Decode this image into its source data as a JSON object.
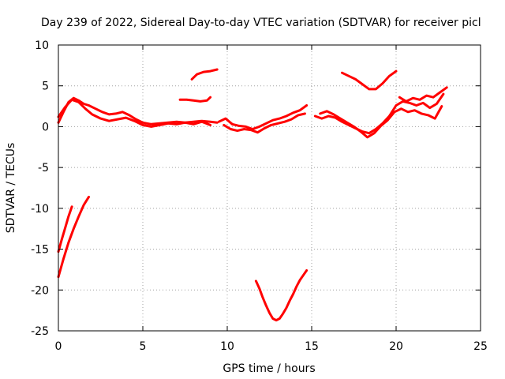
{
  "chart_data": {
    "type": "scatter",
    "title": "Day 239 of 2022, Sidereal Day-to-day VTEC variation (SDTVAR) for receiver picl",
    "xlabel": "GPS time / hours",
    "ylabel": "SDTVAR / TECUs",
    "xlim": [
      0,
      25
    ],
    "ylim": [
      -25,
      10
    ],
    "xticks": [
      "0",
      "5",
      "10",
      "15",
      "20",
      "25"
    ],
    "yticks": [
      "10",
      "5",
      "0",
      "-5",
      "-10",
      "-15",
      "-20",
      "-25"
    ],
    "grid": true,
    "color": "#ff0000",
    "segments": [
      {
        "x": [
          0.0,
          0.3,
          0.6,
          0.9,
          1.2,
          1.5,
          1.8,
          2.2,
          2.6,
          3.0,
          3.4,
          3.8,
          4.2,
          4.6,
          5.0,
          5.5,
          6.0,
          6.5,
          7.0,
          7.5,
          8.0,
          8.5,
          9.0,
          9.4
        ],
        "y": [
          0.5,
          1.8,
          3.0,
          3.5,
          3.2,
          2.8,
          2.6,
          2.2,
          1.8,
          1.5,
          1.6,
          1.8,
          1.4,
          0.9,
          0.5,
          0.3,
          0.4,
          0.5,
          0.6,
          0.5,
          0.6,
          0.7,
          0.6,
          0.5
        ]
      },
      {
        "x": [
          0.0,
          0.4,
          0.8,
          1.2,
          1.6,
          2.0,
          2.5,
          3.0,
          3.5,
          4.0,
          4.5,
          5.0,
          5.5,
          6.0,
          6.5,
          7.0,
          7.5,
          8.0,
          8.5,
          9.0
        ],
        "y": [
          1.2,
          2.4,
          3.3,
          3.0,
          2.2,
          1.5,
          1.0,
          0.7,
          0.9,
          1.1,
          0.7,
          0.2,
          0.0,
          0.2,
          0.4,
          0.3,
          0.5,
          0.3,
          0.6,
          0.2
        ]
      },
      {
        "x": [
          0.0,
          0.2,
          0.4,
          0.6,
          0.8
        ],
        "y": [
          -15.3,
          -13.8,
          -12.4,
          -11.0,
          -9.8
        ]
      },
      {
        "x": [
          0.0,
          0.3,
          0.6,
          0.9,
          1.2,
          1.5,
          1.8
        ],
        "y": [
          -18.4,
          -16.2,
          -14.2,
          -12.5,
          -11.0,
          -9.6,
          -8.6
        ]
      },
      {
        "x": [
          7.9,
          8.2,
          8.6,
          9.0,
          9.4
        ],
        "y": [
          5.8,
          6.4,
          6.7,
          6.8,
          7.0
        ]
      },
      {
        "x": [
          7.2,
          7.6,
          8.0,
          8.4,
          8.8,
          9.0
        ],
        "y": [
          3.3,
          3.3,
          3.2,
          3.1,
          3.2,
          3.6
        ]
      },
      {
        "x": [
          9.5,
          9.9,
          10.3,
          10.7,
          11.1,
          11.5,
          11.9,
          12.3,
          12.7,
          13.1,
          13.5,
          13.9,
          14.3,
          14.7
        ],
        "y": [
          0.6,
          1.0,
          0.3,
          0.1,
          0.0,
          -0.3,
          0.0,
          0.4,
          0.8,
          1.0,
          1.3,
          1.7,
          2.0,
          2.6
        ]
      },
      {
        "x": [
          9.8,
          10.2,
          10.6,
          11.0,
          11.4,
          11.8,
          12.2,
          12.6,
          13.0,
          13.4,
          13.8,
          14.2,
          14.6
        ],
        "y": [
          0.2,
          -0.3,
          -0.5,
          -0.3,
          -0.4,
          -0.7,
          -0.2,
          0.2,
          0.4,
          0.6,
          0.9,
          1.4,
          1.6
        ]
      },
      {
        "x": [
          11.7,
          11.9,
          12.1,
          12.3,
          12.5,
          12.7,
          12.9,
          13.1,
          13.3,
          13.5,
          13.7,
          13.9,
          14.1,
          14.3,
          14.5,
          14.7
        ],
        "y": [
          -18.9,
          -19.8,
          -20.9,
          -21.9,
          -22.8,
          -23.5,
          -23.7,
          -23.5,
          -22.9,
          -22.2,
          -21.3,
          -20.5,
          -19.6,
          -18.8,
          -18.2,
          -17.6
        ]
      },
      {
        "x": [
          15.2,
          15.6,
          16.0,
          16.4,
          16.8,
          17.2,
          17.6,
          18.0,
          18.4,
          18.8,
          19.2,
          19.6,
          20.0,
          20.4,
          20.8,
          21.2,
          21.6,
          22.0,
          22.4,
          22.8
        ],
        "y": [
          1.3,
          1.0,
          1.3,
          1.1,
          0.6,
          0.2,
          -0.2,
          -0.6,
          -0.8,
          -0.3,
          0.4,
          1.3,
          2.6,
          3.1,
          2.9,
          2.6,
          2.9,
          2.3,
          2.8,
          4.0
        ]
      },
      {
        "x": [
          15.5,
          15.9,
          16.3,
          16.7,
          17.1,
          17.5,
          17.9,
          18.3,
          18.7,
          19.1,
          19.5,
          19.9,
          20.3,
          20.7,
          21.1,
          21.5,
          21.9,
          22.3,
          22.7
        ],
        "y": [
          1.6,
          1.9,
          1.5,
          1.0,
          0.5,
          0.0,
          -0.6,
          -1.3,
          -0.8,
          0.1,
          0.8,
          1.8,
          2.2,
          1.8,
          2.0,
          1.6,
          1.4,
          1.0,
          2.5
        ]
      },
      {
        "x": [
          16.8,
          17.2,
          17.6,
          18.0,
          18.4,
          18.8,
          19.2,
          19.6,
          20.0
        ],
        "y": [
          6.6,
          6.2,
          5.8,
          5.2,
          4.6,
          4.6,
          5.3,
          6.2,
          6.8
        ]
      },
      {
        "x": [
          20.2,
          20.6,
          21.0,
          21.4,
          21.8,
          22.2,
          22.6,
          23.0
        ],
        "y": [
          3.6,
          3.1,
          3.5,
          3.3,
          3.8,
          3.6,
          4.2,
          4.8
        ]
      }
    ]
  }
}
